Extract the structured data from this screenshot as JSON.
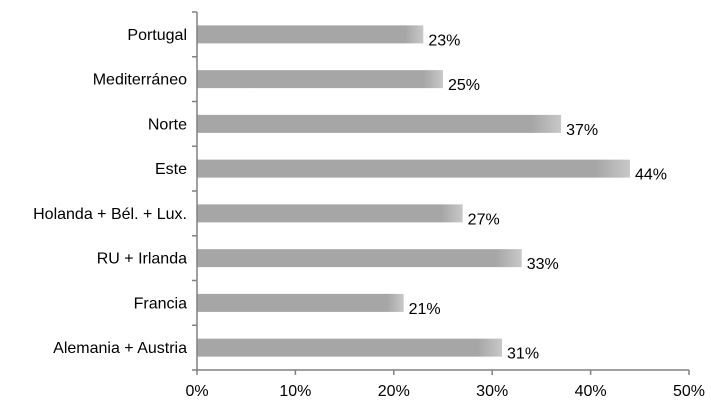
{
  "chart_data": {
    "type": "bar",
    "orientation": "horizontal",
    "categories": [
      "Portugal",
      "Mediterráneo",
      "Norte",
      "Este",
      "Holanda + Bél. + Lux.",
      "RU + Irlanda",
      "Francia",
      "Alemania + Austria"
    ],
    "values": [
      23,
      25,
      37,
      44,
      27,
      33,
      21,
      31
    ],
    "data_labels": [
      "23%",
      "25%",
      "37%",
      "44%",
      "27%",
      "33%",
      "21%",
      "31%"
    ],
    "x_ticks": [
      0,
      10,
      20,
      30,
      40,
      50
    ],
    "x_tick_labels": [
      "0%",
      "10%",
      "20%",
      "30%",
      "40%",
      "50%"
    ],
    "xlim": [
      0,
      50
    ],
    "title": "",
    "xlabel": "",
    "ylabel": "",
    "grid": false,
    "legend": "none",
    "colors": {
      "bar": "#a6a6a6",
      "bar_highlight": "#c8c8c8",
      "axis": "#808080",
      "text": "#000000"
    }
  }
}
